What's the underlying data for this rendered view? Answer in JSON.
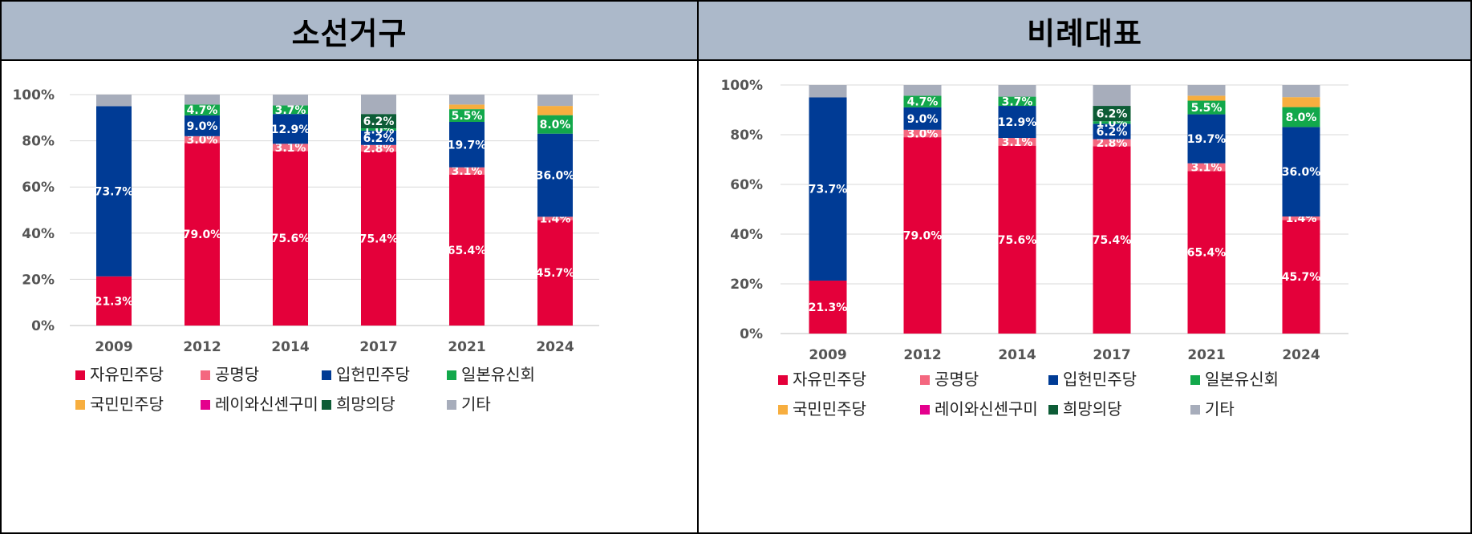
{
  "panels": [
    {
      "title": "소선거구"
    },
    {
      "title": "비례대표"
    }
  ],
  "legend": [
    {
      "name": "자유민주당",
      "color": "#e4003a"
    },
    {
      "name": "공명당",
      "color": "#f4677f"
    },
    {
      "name": "입헌민주당",
      "color": "#003b95"
    },
    {
      "name": "일본유신회",
      "color": "#12a84b"
    },
    {
      "name": "국민민주당",
      "color": "#f7ae3f"
    },
    {
      "name": "레이와신센구미",
      "color": "#e4008d"
    },
    {
      "name": "희망의당",
      "color": "#0d5c36"
    },
    {
      "name": "기타",
      "color": "#a7adbb"
    }
  ],
  "chart_data": [
    {
      "type": "bar",
      "stacked": true,
      "title": "소선거구",
      "categories": [
        "2009",
        "2012",
        "2014",
        "2017",
        "2021",
        "2024"
      ],
      "ylim": [
        0,
        100
      ],
      "yticks": [
        "0%",
        "20%",
        "40%",
        "60%",
        "80%",
        "100%"
      ],
      "grid": true,
      "legend_position": "bottom",
      "series": [
        {
          "name": "자유민주당",
          "values": [
            21.3,
            79.0,
            75.6,
            75.4,
            65.4,
            45.7
          ],
          "labels": [
            "21.3%",
            "79.0%",
            "75.6%",
            "75.4%",
            "65.4%",
            "45.7%"
          ]
        },
        {
          "name": "공명당",
          "values": [
            0,
            3.0,
            3.1,
            2.8,
            3.1,
            1.4
          ],
          "labels": [
            "",
            "3.0%",
            "3.1%",
            "2.8%",
            "3.1%",
            "1.4%"
          ]
        },
        {
          "name": "입헌민주당",
          "values": [
            73.7,
            9.0,
            12.9,
            6.2,
            19.7,
            36.0
          ],
          "labels": [
            "73.7%",
            "9.0%",
            "12.9%",
            "6.2%",
            "19.7%",
            "36.0%"
          ]
        },
        {
          "name": "일본유신회",
          "values": [
            0,
            4.7,
            3.7,
            1.0,
            5.5,
            8.0
          ],
          "labels": [
            "",
            "4.7%",
            "3.7%",
            "1.0%",
            "5.5%",
            "8.0%"
          ]
        },
        {
          "name": "국민민주당",
          "values": [
            0,
            0,
            0,
            0,
            2.0,
            4.0
          ],
          "labels": [
            "",
            "",
            "",
            "",
            "",
            ""
          ]
        },
        {
          "name": "레이와신센구미",
          "values": [
            0,
            0,
            0,
            0,
            0,
            0
          ],
          "labels": [
            "",
            "",
            "",
            "",
            "",
            ""
          ]
        },
        {
          "name": "희망의당",
          "values": [
            0,
            0,
            0,
            6.2,
            0,
            0
          ],
          "labels": [
            "",
            "",
            "",
            "6.2%",
            "",
            ""
          ]
        },
        {
          "name": "기타",
          "values": [
            5.0,
            4.3,
            4.7,
            8.4,
            4.3,
            4.9
          ],
          "labels": [
            "",
            "",
            "",
            "",
            "",
            ""
          ]
        }
      ]
    },
    {
      "type": "bar",
      "stacked": true,
      "title": "비례대표",
      "categories": [
        "2009",
        "2012",
        "2014",
        "2017",
        "2021",
        "2024"
      ],
      "ylim": [
        0,
        100
      ],
      "yticks": [
        "0%",
        "20%",
        "40%",
        "60%",
        "80%",
        "100%"
      ],
      "grid": true,
      "legend_position": "bottom",
      "series": [
        {
          "name": "자유민주당",
          "values": [
            21.3,
            79.0,
            75.6,
            75.4,
            65.4,
            45.7
          ],
          "labels": [
            "21.3%",
            "79.0%",
            "75.6%",
            "75.4%",
            "65.4%",
            "45.7%"
          ]
        },
        {
          "name": "공명당",
          "values": [
            0,
            3.0,
            3.1,
            2.8,
            3.1,
            1.4
          ],
          "labels": [
            "",
            "3.0%",
            "3.1%",
            "2.8%",
            "3.1%",
            "1.4%"
          ]
        },
        {
          "name": "입헌민주당",
          "values": [
            73.7,
            9.0,
            12.9,
            6.2,
            19.7,
            36.0
          ],
          "labels": [
            "73.7%",
            "9.0%",
            "12.9%",
            "6.2%",
            "19.7%",
            "36.0%"
          ]
        },
        {
          "name": "일본유신회",
          "values": [
            0,
            4.7,
            3.7,
            1.0,
            5.5,
            8.0
          ],
          "labels": [
            "",
            "4.7%",
            "3.7%",
            "1.0%",
            "5.5%",
            "8.0%"
          ]
        },
        {
          "name": "국민민주당",
          "values": [
            0,
            0,
            0,
            0,
            2.0,
            4.0
          ],
          "labels": [
            "",
            "",
            "",
            "",
            "",
            ""
          ]
        },
        {
          "name": "레이와신센구미",
          "values": [
            0,
            0,
            0,
            0,
            0,
            0
          ],
          "labels": [
            "",
            "",
            "",
            "",
            "",
            ""
          ]
        },
        {
          "name": "희망의당",
          "values": [
            0,
            0,
            0,
            6.2,
            0,
            0
          ],
          "labels": [
            "",
            "",
            "",
            "6.2%",
            "",
            ""
          ]
        },
        {
          "name": "기타",
          "values": [
            5.0,
            4.3,
            4.7,
            8.4,
            4.3,
            4.9
          ],
          "labels": [
            "",
            "",
            "",
            "",
            "",
            ""
          ]
        }
      ]
    }
  ]
}
